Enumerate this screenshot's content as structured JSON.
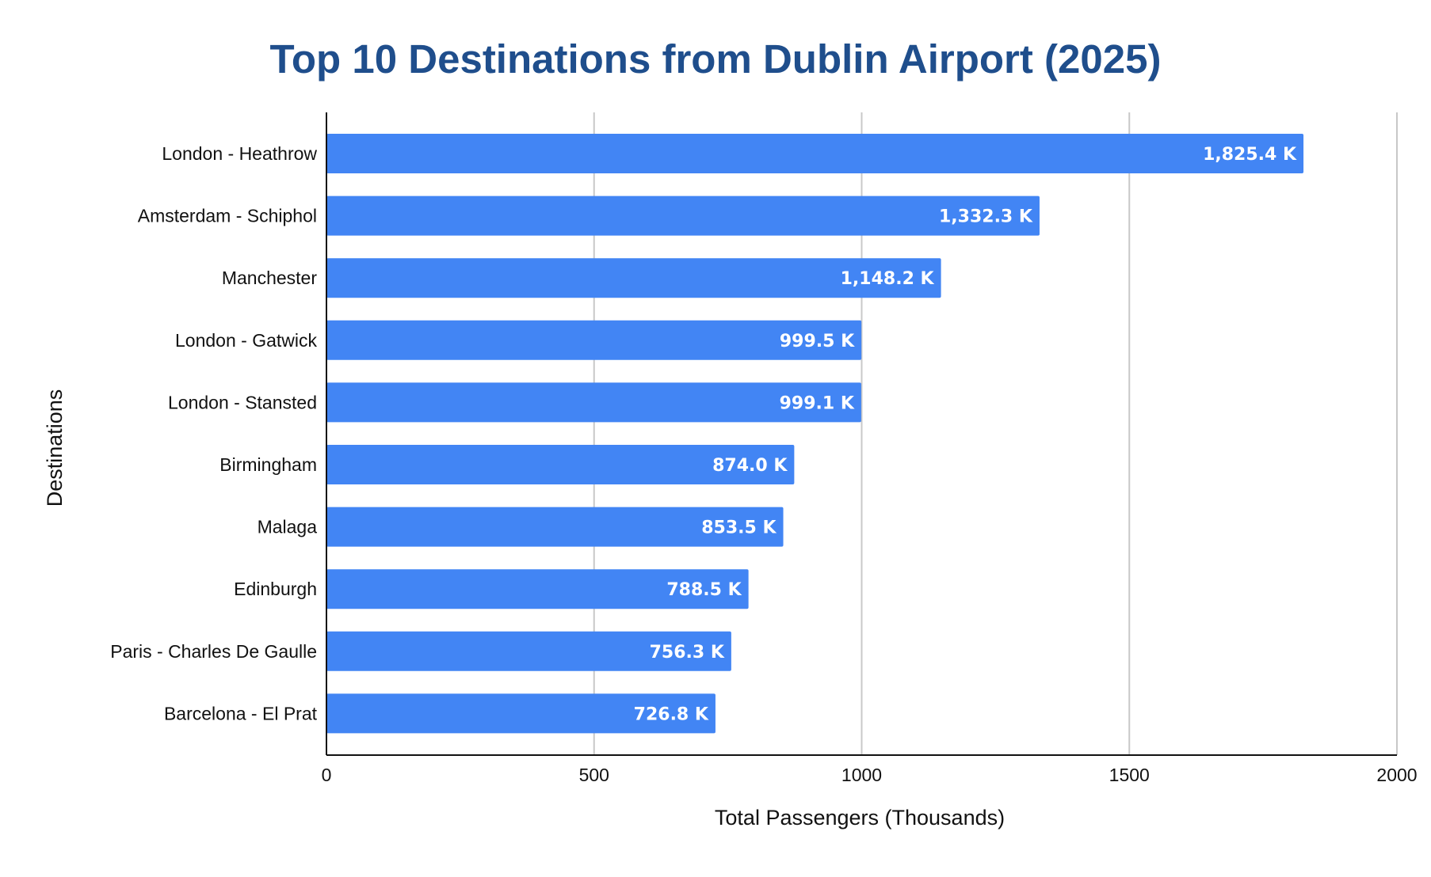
{
  "chart_data": {
    "type": "bar",
    "orientation": "horizontal",
    "title": "Top 10 Destinations from Dublin Airport (2025)",
    "xlabel": "Total Passengers (Thousands)",
    "ylabel": "Destinations",
    "categories": [
      "London - Heathrow",
      "Amsterdam - Schiphol",
      "Manchester",
      "London - Gatwick",
      "London - Stansted",
      "Birmingham",
      "Malaga",
      "Edinburgh",
      "Paris - Charles De Gaulle",
      "Barcelona - El Prat"
    ],
    "values": [
      1825.4,
      1332.3,
      1148.2,
      999.5,
      999.1,
      874.0,
      853.5,
      788.5,
      756.3,
      726.8
    ],
    "data_labels": [
      "1,825.4 K",
      "1,332.3 K",
      "1,148.2 K",
      "999.5 K",
      "999.1 K",
      "874.0 K",
      "853.5 K",
      "788.5 K",
      "756.3 K",
      "726.8 K"
    ],
    "xlim": [
      0,
      2000
    ],
    "xticks": [
      0,
      500,
      1000,
      1500,
      2000
    ],
    "xtick_labels": [
      "0",
      "500",
      "1000",
      "1500",
      "2000"
    ],
    "grid": true,
    "legend": false,
    "colors": {
      "bar": "#4285f4",
      "title": "#1f4e8c",
      "grid": "#c8c8c8",
      "axis": "#111111",
      "bar_label": "#ffffff",
      "text": "#111111"
    }
  }
}
